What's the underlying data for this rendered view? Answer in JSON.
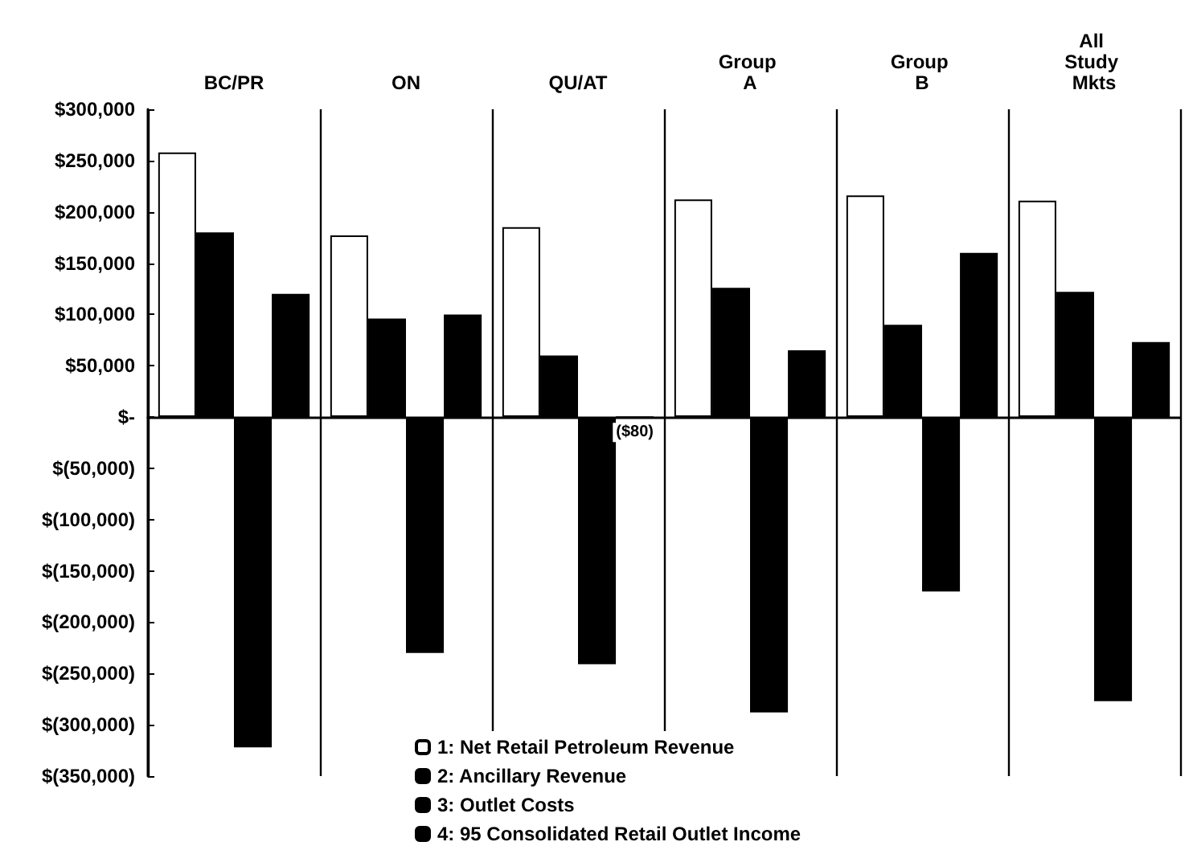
{
  "chart_data": {
    "type": "bar",
    "categories": [
      "BC/PR",
      "ON",
      "QU/AT",
      "Group A",
      "Group B",
      "All Study Mkts"
    ],
    "series": [
      {
        "name": "1: Net Retail Petroleum Revenue",
        "color": "#ffffff",
        "values": [
          258000,
          177000,
          185000,
          212000,
          216000,
          211000
        ]
      },
      {
        "name": "2: Ancillary Revenue",
        "color": "#000000",
        "values": [
          180000,
          96000,
          60000,
          126000,
          90000,
          122000
        ]
      },
      {
        "name": "3: Outlet Costs",
        "color": "#000000",
        "values": [
          -322000,
          -230000,
          -241000,
          -288000,
          -170000,
          -277000
        ]
      },
      {
        "name": "4: 95 Consolidated Retail Outlet Income",
        "color": "#000000",
        "values": [
          120000,
          100000,
          -80,
          65000,
          160000,
          73000
        ],
        "value_labels": [
          null,
          null,
          "($80)",
          null,
          null,
          null
        ]
      }
    ],
    "ylim": [
      -350000,
      300000
    ],
    "yticks": [
      {
        "value": -350000,
        "label": "$(350,000)"
      },
      {
        "value": -300000,
        "label": "$(300,000)"
      },
      {
        "value": -250000,
        "label": "$(250,000)"
      },
      {
        "value": -200000,
        "label": "$(200,000)"
      },
      {
        "value": -150000,
        "label": "$(150,000)"
      },
      {
        "value": -100000,
        "label": "$(100,000)"
      },
      {
        "value": -50000,
        "label": "$(50,000)"
      },
      {
        "value": 0,
        "label": "$-"
      },
      {
        "value": 50000,
        "label": "$50,000"
      },
      {
        "value": 100000,
        "label": "$100,000"
      },
      {
        "value": 150000,
        "label": "$150,000"
      },
      {
        "value": 200000,
        "label": "$200,000"
      },
      {
        "value": 250000,
        "label": "$250,000"
      },
      {
        "value": 300000,
        "label": "$300,000"
      }
    ],
    "grid": "x",
    "legend": "bottom"
  }
}
